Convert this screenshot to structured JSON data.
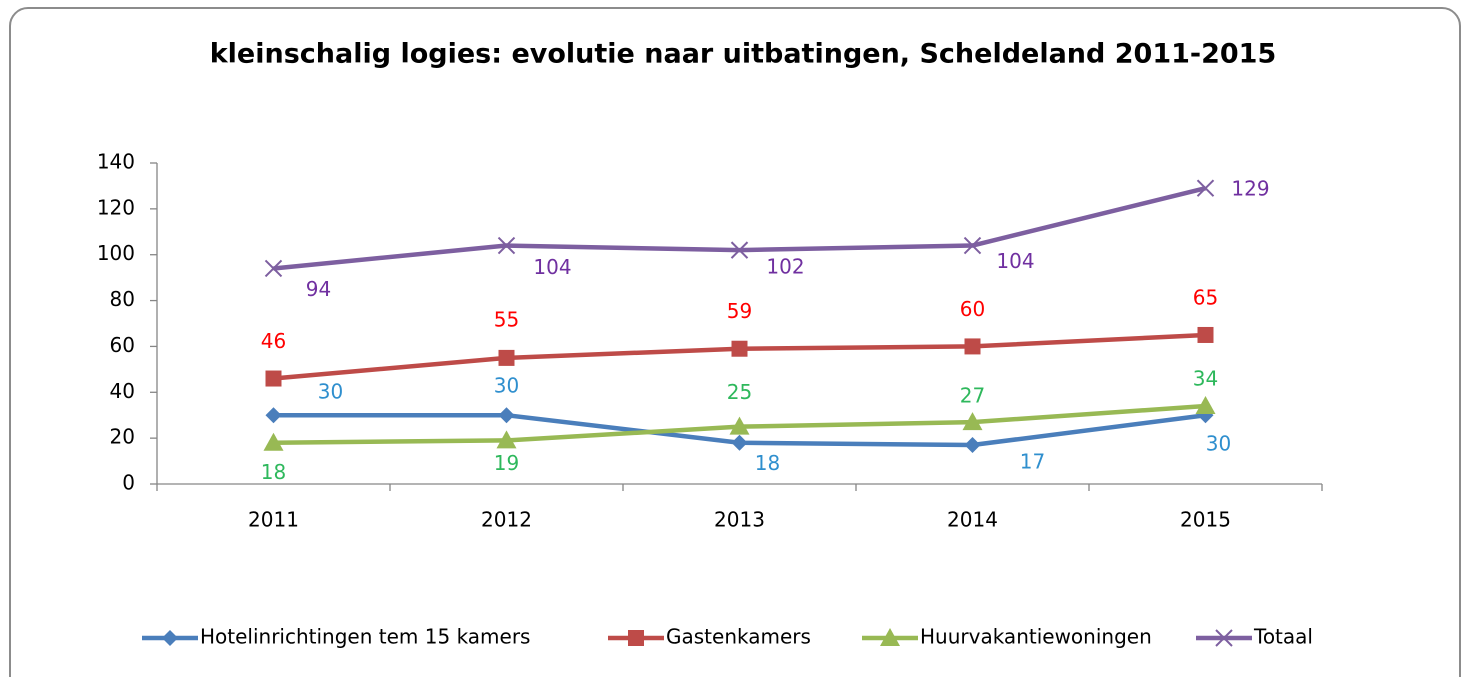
{
  "chart_data": {
    "type": "line",
    "title": "kleinschalig logies: evolutie naar uitbatingen, Scheldeland 2011-2015",
    "categories": [
      "2011",
      "2012",
      "2013",
      "2014",
      "2015"
    ],
    "series": [
      {
        "name": "Hotelinrichtingen tem 15 kamers",
        "color": "#4a7ebb",
        "label_color": "#2f8fce",
        "marker": "diamond",
        "values": [
          30,
          30,
          18,
          17,
          30
        ]
      },
      {
        "name": "Gastenkamers",
        "color": "#be4b48",
        "label_color": "#ff0000",
        "marker": "square",
        "values": [
          46,
          55,
          59,
          60,
          65
        ]
      },
      {
        "name": "Huurvakantiewoningen",
        "color": "#98b954",
        "label_color": "#2eb85c",
        "marker": "triangle",
        "values": [
          18,
          19,
          25,
          27,
          34
        ]
      },
      {
        "name": "Totaal",
        "color": "#7d5fa0",
        "label_color": "#7030a0",
        "marker": "x",
        "values": [
          94,
          104,
          102,
          104,
          129
        ]
      }
    ],
    "ylim": [
      0,
      140
    ],
    "yticks": [
      0,
      20,
      40,
      60,
      80,
      100,
      120,
      140
    ],
    "legend": "bottom"
  }
}
